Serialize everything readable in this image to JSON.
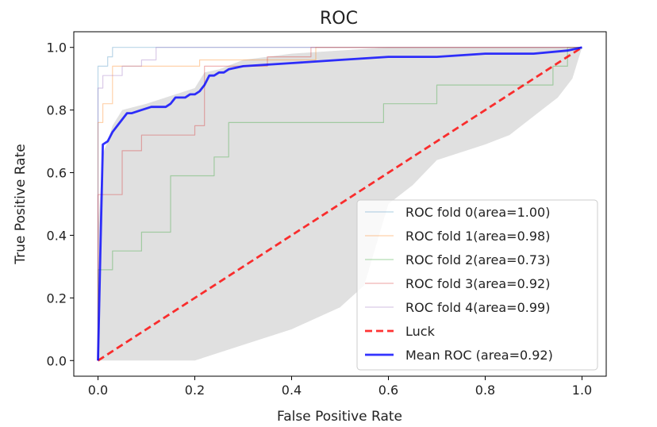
{
  "chart_data": {
    "type": "line",
    "title": "ROC",
    "xlabel": "False Positive Rate",
    "ylabel": "True Positive Rate",
    "xlim": [
      -0.05,
      1.05
    ],
    "ylim": [
      -0.05,
      1.05
    ],
    "xticks": [
      0.0,
      0.2,
      0.4,
      0.6,
      0.8,
      1.0
    ],
    "yticks": [
      0.0,
      0.2,
      0.4,
      0.6,
      0.8,
      1.0
    ],
    "grid": false,
    "legend_position": "lower-right",
    "std_band": {
      "color": "#e0e0e0",
      "upper": [
        [
          0,
          0
        ],
        [
          0,
          0.42
        ],
        [
          0.01,
          0.66
        ],
        [
          0.02,
          0.7
        ],
        [
          0.03,
          0.75
        ],
        [
          0.05,
          0.8
        ],
        [
          0.1,
          0.82
        ],
        [
          0.2,
          0.87
        ],
        [
          0.22,
          0.92
        ],
        [
          0.25,
          0.93
        ],
        [
          0.3,
          0.96
        ],
        [
          0.4,
          0.98
        ],
        [
          0.5,
          0.99
        ],
        [
          0.6,
          1.0
        ],
        [
          0.7,
          1.0
        ],
        [
          1.0,
          1.0
        ]
      ],
      "lower": [
        [
          0,
          0
        ],
        [
          0.1,
          0.0
        ],
        [
          0.2,
          0.0
        ],
        [
          0.3,
          0.05
        ],
        [
          0.4,
          0.1
        ],
        [
          0.5,
          0.17
        ],
        [
          0.55,
          0.24
        ],
        [
          0.6,
          0.5
        ],
        [
          0.65,
          0.56
        ],
        [
          0.7,
          0.64
        ],
        [
          0.8,
          0.69
        ],
        [
          0.85,
          0.72
        ],
        [
          0.9,
          0.78
        ],
        [
          0.95,
          0.84
        ],
        [
          0.98,
          0.9
        ],
        [
          1.0,
          1.0
        ]
      ]
    },
    "series": [
      {
        "name": "ROC fold 0(area=1.00)",
        "color": "#1f77b4",
        "opacity": 0.3,
        "width": 1.2,
        "dashed": false,
        "points": [
          [
            0,
            0
          ],
          [
            0,
            0.94
          ],
          [
            0.02,
            0.94
          ],
          [
            0.02,
            0.97
          ],
          [
            0.03,
            0.97
          ],
          [
            0.03,
            1.0
          ],
          [
            1,
            1
          ]
        ]
      },
      {
        "name": "ROC fold 1(area=0.98)",
        "color": "#ff7f0e",
        "opacity": 0.35,
        "width": 1.2,
        "dashed": false,
        "points": [
          [
            0,
            0
          ],
          [
            0,
            0.76
          ],
          [
            0.01,
            0.76
          ],
          [
            0.01,
            0.82
          ],
          [
            0.03,
            0.82
          ],
          [
            0.03,
            0.94
          ],
          [
            0.21,
            0.94
          ],
          [
            0.21,
            0.96
          ],
          [
            0.45,
            0.96
          ],
          [
            0.45,
            1.0
          ],
          [
            1,
            1
          ]
        ]
      },
      {
        "name": "ROC fold 2(area=0.73)",
        "color": "#2ca02c",
        "opacity": 0.35,
        "width": 1.2,
        "dashed": false,
        "points": [
          [
            0,
            0
          ],
          [
            0,
            0.29
          ],
          [
            0.03,
            0.29
          ],
          [
            0.03,
            0.35
          ],
          [
            0.09,
            0.35
          ],
          [
            0.09,
            0.41
          ],
          [
            0.15,
            0.41
          ],
          [
            0.15,
            0.59
          ],
          [
            0.24,
            0.59
          ],
          [
            0.24,
            0.65
          ],
          [
            0.27,
            0.65
          ],
          [
            0.27,
            0.76
          ],
          [
            0.59,
            0.76
          ],
          [
            0.59,
            0.82
          ],
          [
            0.7,
            0.82
          ],
          [
            0.7,
            0.88
          ],
          [
            0.94,
            0.88
          ],
          [
            0.94,
            0.94
          ],
          [
            0.97,
            0.94
          ],
          [
            0.97,
            1.0
          ],
          [
            1,
            1
          ]
        ]
      },
      {
        "name": "ROC fold 3(area=0.92)",
        "color": "#d62728",
        "opacity": 0.35,
        "width": 1.2,
        "dashed": false,
        "points": [
          [
            0,
            0
          ],
          [
            0,
            0.53
          ],
          [
            0.05,
            0.53
          ],
          [
            0.05,
            0.67
          ],
          [
            0.09,
            0.67
          ],
          [
            0.09,
            0.72
          ],
          [
            0.2,
            0.72
          ],
          [
            0.2,
            0.75
          ],
          [
            0.22,
            0.75
          ],
          [
            0.22,
            0.94
          ],
          [
            0.35,
            0.94
          ],
          [
            0.35,
            0.97
          ],
          [
            0.44,
            0.97
          ],
          [
            0.44,
            1.0
          ],
          [
            1,
            1
          ]
        ]
      },
      {
        "name": "ROC fold 4(area=0.99)",
        "color": "#9467bd",
        "opacity": 0.35,
        "width": 1.2,
        "dashed": false,
        "points": [
          [
            0,
            0
          ],
          [
            0,
            0.87
          ],
          [
            0.01,
            0.87
          ],
          [
            0.01,
            0.91
          ],
          [
            0.05,
            0.91
          ],
          [
            0.05,
            0.94
          ],
          [
            0.09,
            0.94
          ],
          [
            0.09,
            0.96
          ],
          [
            0.12,
            0.96
          ],
          [
            0.12,
            1.0
          ],
          [
            1,
            1
          ]
        ]
      },
      {
        "name": "Luck",
        "color": "#ff0000",
        "opacity": 0.8,
        "width": 2.8,
        "dashed": true,
        "points": [
          [
            0,
            0
          ],
          [
            1,
            1
          ]
        ]
      },
      {
        "name": "Mean ROC (area=0.92)",
        "color": "#0000ff",
        "opacity": 0.8,
        "width": 2.8,
        "dashed": false,
        "points": [
          [
            0,
            0
          ],
          [
            0.005,
            0.35
          ],
          [
            0.01,
            0.69
          ],
          [
            0.02,
            0.7
          ],
          [
            0.03,
            0.73
          ],
          [
            0.04,
            0.75
          ],
          [
            0.05,
            0.77
          ],
          [
            0.06,
            0.79
          ],
          [
            0.07,
            0.79
          ],
          [
            0.09,
            0.8
          ],
          [
            0.11,
            0.81
          ],
          [
            0.14,
            0.81
          ],
          [
            0.15,
            0.82
          ],
          [
            0.16,
            0.84
          ],
          [
            0.18,
            0.84
          ],
          [
            0.19,
            0.85
          ],
          [
            0.2,
            0.85
          ],
          [
            0.21,
            0.86
          ],
          [
            0.22,
            0.88
          ],
          [
            0.23,
            0.91
          ],
          [
            0.24,
            0.91
          ],
          [
            0.25,
            0.92
          ],
          [
            0.26,
            0.92
          ],
          [
            0.27,
            0.93
          ],
          [
            0.3,
            0.94
          ],
          [
            0.4,
            0.95
          ],
          [
            0.5,
            0.96
          ],
          [
            0.6,
            0.97
          ],
          [
            0.7,
            0.97
          ],
          [
            0.8,
            0.98
          ],
          [
            0.9,
            0.98
          ],
          [
            0.97,
            0.99
          ],
          [
            1.0,
            1.0
          ]
        ]
      }
    ]
  }
}
